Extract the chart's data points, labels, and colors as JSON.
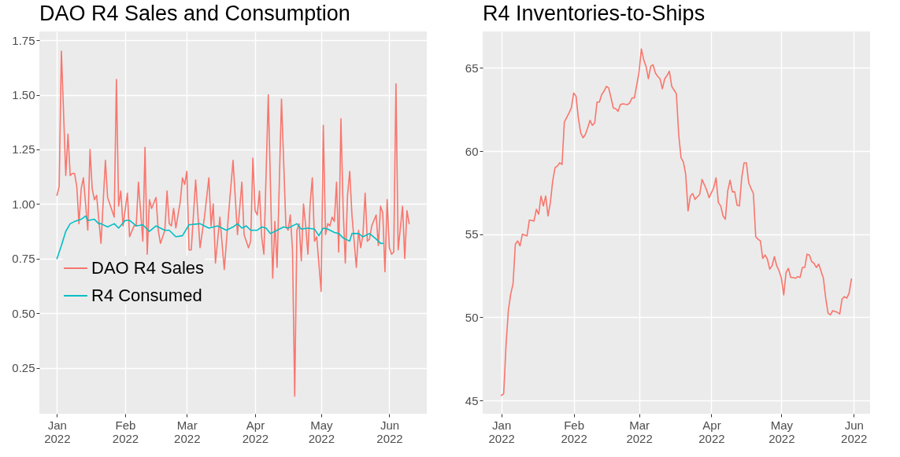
{
  "chart_data": [
    {
      "type": "line",
      "title": "DAO R4 Sales and Consumption",
      "xlim": [
        "2021-12-24",
        "2022-06-18"
      ],
      "xticks": [
        {
          "value": "2022-01-01",
          "label": "Jan 2022"
        },
        {
          "value": "2022-02-01",
          "label": "Feb 2022"
        },
        {
          "value": "2022-03-01",
          "label": "Mar 2022"
        },
        {
          "value": "2022-04-01",
          "label": "Apr 2022"
        },
        {
          "value": "2022-05-01",
          "label": "May 2022"
        },
        {
          "value": "2022-06-01",
          "label": "Jun 2022"
        }
      ],
      "ylim": [
        0.04,
        1.79
      ],
      "yticks": [
        {
          "value": 0.25,
          "label": "0.25"
        },
        {
          "value": 0.5,
          "label": "0.50"
        },
        {
          "value": 0.75,
          "label": "0.75"
        },
        {
          "value": 1.0,
          "label": "1.00"
        },
        {
          "value": 1.25,
          "label": "1.25"
        },
        {
          "value": 1.5,
          "label": "1.50"
        },
        {
          "value": 1.75,
          "label": "1.75"
        }
      ],
      "grid": true,
      "legend": "left",
      "line_style": "solid",
      "marker": "none",
      "series": [
        {
          "name": "DAO R4 Sales",
          "color": "#f8766d",
          "x": [
            "2022-01-01",
            "2022-01-02",
            "2022-01-03",
            "2022-01-05",
            "2022-01-06",
            "2022-01-07",
            "2022-01-08",
            "2022-01-09",
            "2022-01-10",
            "2022-01-11",
            "2022-01-12",
            "2022-01-13",
            "2022-01-15",
            "2022-01-16",
            "2022-01-17",
            "2022-01-18",
            "2022-01-19",
            "2022-01-21",
            "2022-01-23",
            "2022-01-24",
            "2022-01-27",
            "2022-01-28",
            "2022-01-29",
            "2022-01-30",
            "2022-01-31",
            "2022-02-02",
            "2022-02-03",
            "2022-02-05",
            "2022-02-06",
            "2022-02-07",
            "2022-02-09",
            "2022-02-10",
            "2022-02-11",
            "2022-02-12",
            "2022-02-13",
            "2022-02-15",
            "2022-02-16",
            "2022-02-17",
            "2022-02-19",
            "2022-02-20",
            "2022-02-21",
            "2022-02-22",
            "2022-02-23",
            "2022-02-24",
            "2022-02-26",
            "2022-02-27",
            "2022-02-28",
            "2022-03-01",
            "2022-03-02",
            "2022-03-03",
            "2022-03-05",
            "2022-03-07",
            "2022-03-09",
            "2022-03-11",
            "2022-03-12",
            "2022-03-13",
            "2022-03-14",
            "2022-03-16",
            "2022-03-18",
            "2022-03-20",
            "2022-03-22",
            "2022-03-24",
            "2022-03-26",
            "2022-03-27",
            "2022-03-29",
            "2022-03-30",
            "2022-03-31",
            "2022-04-01",
            "2022-04-02",
            "2022-04-03",
            "2022-04-04",
            "2022-04-05",
            "2022-04-07",
            "2022-04-09",
            "2022-04-10",
            "2022-04-11",
            "2022-04-13",
            "2022-04-15",
            "2022-04-16",
            "2022-04-17",
            "2022-04-18",
            "2022-04-19",
            "2022-04-20",
            "2022-04-21",
            "2022-04-22",
            "2022-04-23",
            "2022-04-24",
            "2022-04-25",
            "2022-04-26",
            "2022-04-27",
            "2022-04-28",
            "2022-04-29",
            "2022-05-01",
            "2022-05-02",
            "2022-05-03",
            "2022-05-04",
            "2022-05-05",
            "2022-05-06",
            "2022-05-07",
            "2022-05-08",
            "2022-05-09",
            "2022-05-10",
            "2022-05-11",
            "2022-05-12",
            "2022-05-13",
            "2022-05-14",
            "2022-05-15",
            "2022-05-17",
            "2022-05-18",
            "2022-05-19",
            "2022-05-20",
            "2022-05-21",
            "2022-05-22",
            "2022-05-23",
            "2022-05-24",
            "2022-05-26",
            "2022-05-27",
            "2022-05-28",
            "2022-05-29",
            "2022-05-30",
            "2022-05-31",
            "2022-06-01",
            "2022-06-02",
            "2022-06-03",
            "2022-06-04",
            "2022-06-05",
            "2022-06-07",
            "2022-06-08",
            "2022-06-09",
            "2022-06-10"
          ],
          "values": [
            1.04,
            1.08,
            1.7,
            1.13,
            1.32,
            1.13,
            1.14,
            1.14,
            1.08,
            0.91,
            1.07,
            1.12,
            0.88,
            1.25,
            1.07,
            1.02,
            1.04,
            0.82,
            1.2,
            1.03,
            0.94,
            1.57,
            0.99,
            1.06,
            0.9,
            1.05,
            0.85,
            0.9,
            0.9,
            1.1,
            0.83,
            1.26,
            0.77,
            1.02,
            0.98,
            1.03,
            0.88,
            0.82,
            0.88,
            1.06,
            0.91,
            0.9,
            0.98,
            0.89,
            1.01,
            1.12,
            1.09,
            1.15,
            0.79,
            0.79,
            1.11,
            0.8,
            0.94,
            1.12,
            0.9,
            1.0,
            0.73,
            0.94,
            0.7,
            0.96,
            1.2,
            0.86,
            1.1,
            0.86,
            0.8,
            0.83,
            1.21,
            0.97,
            0.95,
            1.06,
            0.85,
            0.77,
            1.5,
            0.66,
            0.92,
            0.71,
            1.48,
            0.9,
            0.88,
            0.95,
            0.79,
            0.12,
            0.88,
            0.91,
            0.74,
            1.0,
            0.9,
            0.77,
            1.0,
            1.12,
            0.83,
            0.85,
            0.6,
            1.36,
            0.86,
            0.91,
            0.9,
            0.94,
            0.92,
            1.1,
            0.78,
            1.39,
            0.98,
            0.73,
            1.04,
            1.15,
            0.95,
            0.71,
            0.88,
            0.8,
            0.86,
            1.05,
            0.83,
            0.84,
            0.9,
            0.95,
            0.81,
            0.99,
            0.96,
            0.69,
            1.02,
            0.8,
            0.77,
            0.78,
            1.55,
            0.79,
            0.99,
            0.75,
            0.97,
            0.91
          ]
        },
        {
          "name": "R4 Consumed",
          "color": "#00bfc4",
          "x": [
            "2022-01-01",
            "2022-01-03",
            "2022-01-05",
            "2022-01-07",
            "2022-01-09",
            "2022-01-12",
            "2022-01-14",
            "2022-01-15",
            "2022-01-18",
            "2022-01-20",
            "2022-01-21",
            "2022-01-24",
            "2022-01-27",
            "2022-01-29",
            "2022-02-01",
            "2022-02-03",
            "2022-02-06",
            "2022-02-09",
            "2022-02-12",
            "2022-02-15",
            "2022-02-19",
            "2022-02-21",
            "2022-02-24",
            "2022-02-27",
            "2022-03-02",
            "2022-03-07",
            "2022-03-11",
            "2022-03-15",
            "2022-03-19",
            "2022-03-22",
            "2022-03-24",
            "2022-03-26",
            "2022-03-28",
            "2022-03-30",
            "2022-04-02",
            "2022-04-04",
            "2022-04-06",
            "2022-04-08",
            "2022-04-11",
            "2022-04-14",
            "2022-04-16",
            "2022-04-20",
            "2022-04-22",
            "2022-04-25",
            "2022-04-28",
            "2022-04-30",
            "2022-05-02",
            "2022-05-04",
            "2022-05-07",
            "2022-05-09",
            "2022-05-11",
            "2022-05-14",
            "2022-05-15",
            "2022-05-18",
            "2022-05-20",
            "2022-05-23",
            "2022-05-26",
            "2022-05-28",
            "2022-05-29"
          ],
          "values": [
            0.75,
            0.81,
            0.875,
            0.91,
            0.92,
            0.93,
            0.945,
            0.925,
            0.93,
            0.91,
            0.91,
            0.895,
            0.91,
            0.89,
            0.925,
            0.925,
            0.9,
            0.905,
            0.875,
            0.9,
            0.88,
            0.88,
            0.85,
            0.855,
            0.905,
            0.91,
            0.89,
            0.9,
            0.88,
            0.895,
            0.91,
            0.89,
            0.9,
            0.88,
            0.88,
            0.895,
            0.89,
            0.865,
            0.88,
            0.895,
            0.89,
            0.91,
            0.885,
            0.89,
            0.885,
            0.855,
            0.89,
            0.885,
            0.87,
            0.865,
            0.845,
            0.83,
            0.865,
            0.865,
            0.85,
            0.865,
            0.84,
            0.82,
            0.82
          ]
        }
      ]
    },
    {
      "type": "line",
      "title": "R4 Inventories-to-Ships",
      "xlim": [
        "2021-12-24",
        "2022-06-08"
      ],
      "xticks": [
        {
          "value": "2022-01-01",
          "label": "Jan 2022"
        },
        {
          "value": "2022-02-01",
          "label": "Feb 2022"
        },
        {
          "value": "2022-03-01",
          "label": "Mar 2022"
        },
        {
          "value": "2022-04-01",
          "label": "Apr 2022"
        },
        {
          "value": "2022-05-01",
          "label": "May 2022"
        },
        {
          "value": "2022-06-01",
          "label": "Jun 2022"
        }
      ],
      "ylim": [
        44.2,
        67.2
      ],
      "yticks": [
        45,
        50,
        55,
        60,
        65
      ],
      "grid": true,
      "line_style": "solid",
      "marker": "none",
      "series": [
        {
          "color": "#f8766d",
          "x": [
            "2022-01-01",
            "2022-01-02",
            "2022-01-03",
            "2022-01-04",
            "2022-01-05",
            "2022-01-06",
            "2022-01-07",
            "2022-01-08",
            "2022-01-09",
            "2022-01-10",
            "2022-01-12",
            "2022-01-13",
            "2022-01-15",
            "2022-01-16",
            "2022-01-17",
            "2022-01-18",
            "2022-01-19",
            "2022-01-20",
            "2022-01-21",
            "2022-01-22",
            "2022-01-23",
            "2022-01-24",
            "2022-01-25",
            "2022-01-26",
            "2022-01-27",
            "2022-01-28",
            "2022-01-30",
            "2022-01-31",
            "2022-02-01",
            "2022-02-02",
            "2022-02-03",
            "2022-02-04",
            "2022-02-05",
            "2022-02-06",
            "2022-02-07",
            "2022-02-08",
            "2022-02-09",
            "2022-02-10",
            "2022-02-11",
            "2022-02-12",
            "2022-02-13",
            "2022-02-14",
            "2022-02-15",
            "2022-02-16",
            "2022-02-17",
            "2022-02-18",
            "2022-02-19",
            "2022-02-20",
            "2022-02-21",
            "2022-02-22",
            "2022-02-24",
            "2022-02-25",
            "2022-02-26",
            "2022-02-27",
            "2022-03-01",
            "2022-03-02",
            "2022-03-03",
            "2022-03-04",
            "2022-03-05",
            "2022-03-06",
            "2022-03-07",
            "2022-03-08",
            "2022-03-09",
            "2022-03-10",
            "2022-03-11",
            "2022-03-12",
            "2022-03-13",
            "2022-03-14",
            "2022-03-15",
            "2022-03-17",
            "2022-03-18",
            "2022-03-19",
            "2022-03-20",
            "2022-03-21",
            "2022-03-22",
            "2022-03-23",
            "2022-03-24",
            "2022-03-25",
            "2022-03-27",
            "2022-03-28",
            "2022-03-30",
            "2022-03-31",
            "2022-04-02",
            "2022-04-03",
            "2022-04-04",
            "2022-04-05",
            "2022-04-06",
            "2022-04-07",
            "2022-04-08",
            "2022-04-09",
            "2022-04-10",
            "2022-04-11",
            "2022-04-12",
            "2022-04-13",
            "2022-04-14",
            "2022-04-15",
            "2022-04-16",
            "2022-04-17",
            "2022-04-18",
            "2022-04-19",
            "2022-04-20",
            "2022-04-21",
            "2022-04-22",
            "2022-04-23",
            "2022-04-24",
            "2022-04-25",
            "2022-04-26",
            "2022-04-27",
            "2022-04-28",
            "2022-04-29",
            "2022-04-30",
            "2022-05-01",
            "2022-05-02",
            "2022-05-03",
            "2022-05-04",
            "2022-05-05",
            "2022-05-06",
            "2022-05-07",
            "2022-05-08",
            "2022-05-09",
            "2022-05-10",
            "2022-05-11",
            "2022-05-12",
            "2022-05-13",
            "2022-05-14",
            "2022-05-15",
            "2022-05-16",
            "2022-05-17",
            "2022-05-19",
            "2022-05-20",
            "2022-05-21",
            "2022-05-22",
            "2022-05-23",
            "2022-05-25",
            "2022-05-26",
            "2022-05-27",
            "2022-05-28",
            "2022-05-29",
            "2022-05-30",
            "2022-05-31"
          ],
          "values": [
            45.3,
            45.4,
            48.3,
            50.4,
            51.4,
            52.0,
            54.4,
            54.6,
            54.3,
            55.0,
            54.9,
            55.85,
            55.8,
            56.5,
            56.2,
            57.3,
            56.7,
            57.3,
            56.1,
            56.9,
            58.2,
            59.0,
            59.1,
            59.3,
            59.2,
            61.75,
            62.3,
            62.6,
            63.5,
            63.3,
            62.0,
            61.1,
            60.8,
            61.0,
            61.4,
            61.85,
            61.55,
            61.7,
            62.95,
            62.95,
            63.4,
            63.6,
            63.9,
            63.8,
            63.2,
            62.6,
            62.55,
            62.4,
            62.8,
            62.85,
            62.8,
            62.9,
            63.2,
            63.2,
            64.75,
            66.15,
            65.5,
            65.1,
            64.35,
            65.1,
            65.2,
            64.7,
            64.5,
            64.35,
            63.75,
            64.35,
            64.55,
            64.8,
            63.9,
            63.45,
            61.0,
            59.6,
            59.35,
            58.6,
            56.4,
            57.3,
            57.45,
            57.1,
            57.4,
            58.3,
            57.65,
            57.2,
            57.8,
            58.4,
            56.9,
            56.7,
            56.1,
            55.9,
            57.6,
            58.25,
            57.55,
            57.55,
            56.75,
            56.7,
            58.4,
            59.3,
            59.3,
            58.1,
            57.75,
            57.45,
            54.85,
            54.7,
            54.6,
            53.55,
            53.75,
            53.5,
            52.9,
            53.1,
            53.65,
            53.1,
            52.8,
            52.35,
            51.35,
            52.7,
            52.95,
            52.4,
            52.4,
            52.35,
            52.45,
            52.4,
            53.0,
            53.0,
            53.8,
            53.75,
            53.35,
            53.25,
            53.0,
            53.2,
            52.35,
            51.15,
            50.25,
            50.15,
            50.4,
            50.3,
            50.2,
            51.1,
            51.25,
            51.15,
            51.45,
            52.3
          ]
        }
      ]
    }
  ]
}
